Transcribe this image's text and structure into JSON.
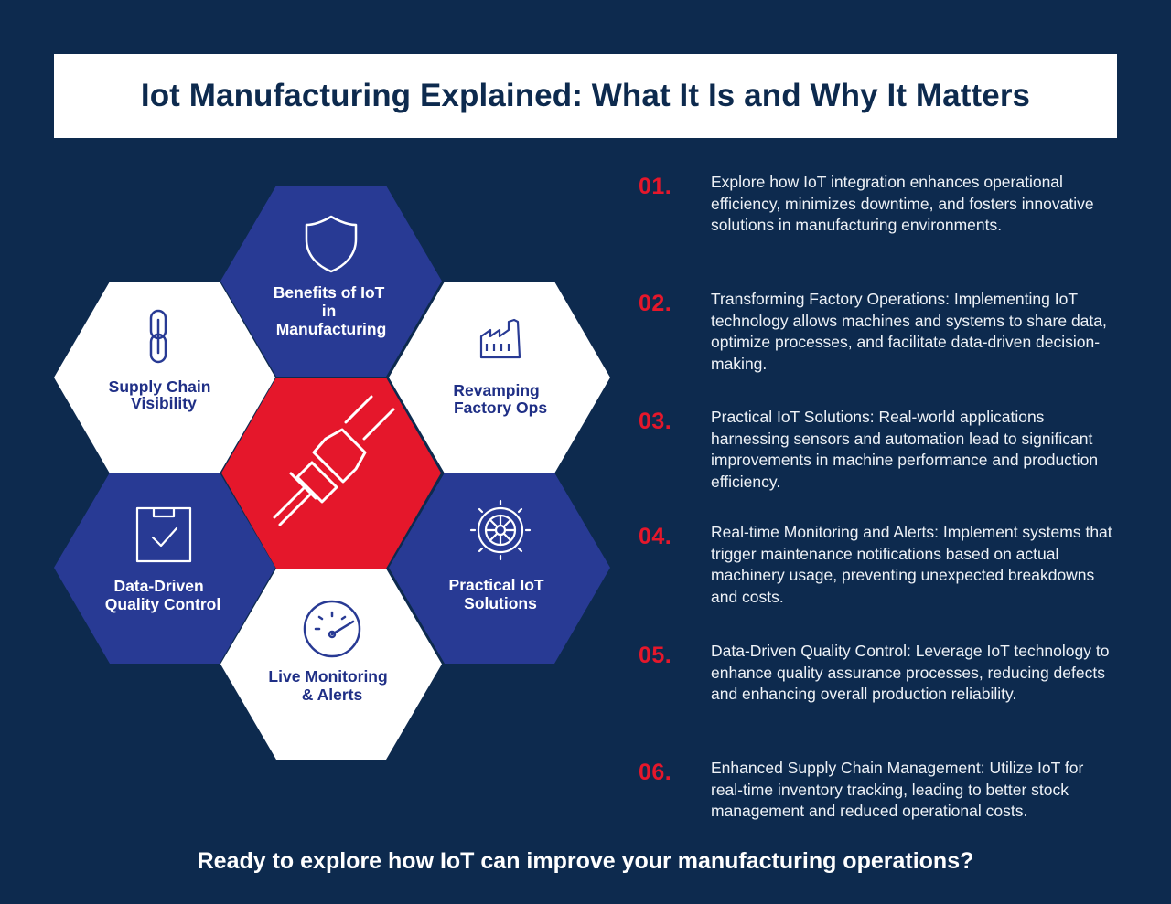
{
  "title": "Iot Manufacturing Explained: What It Is and Why It Matters",
  "hexagons": {
    "top": {
      "lines": [
        "Benefits of IoT",
        "in",
        "Manufacturing"
      ],
      "icon": "shield-icon"
    },
    "upper_left": {
      "lines": [
        "Supply Chain",
        "Visibility"
      ],
      "icon": "chain-link-icon"
    },
    "upper_right": {
      "lines": [
        "Revamping",
        "Factory Ops"
      ],
      "icon": "factory-icon"
    },
    "center": {
      "icon": "plug-connector-icon"
    },
    "lower_left": {
      "lines": [
        "Data-Driven",
        "Quality Control"
      ],
      "icon": "checkbox-icon"
    },
    "lower_right": {
      "lines": [
        "Practical IoT",
        "Solutions"
      ],
      "icon": "gear-icon"
    },
    "bottom": {
      "lines": [
        "Live Monitoring",
        "& Alerts"
      ],
      "icon": "gauge-icon"
    }
  },
  "points": [
    {
      "num": "01.",
      "text": "Explore how IoT integration enhances operational efficiency, minimizes downtime, and fosters innovative solutions in manufacturing environments."
    },
    {
      "num": "02.",
      "text": "Transforming Factory Operations: Implementing IoT technology allows machines and systems to share data, optimize processes, and facilitate data-driven decision-making."
    },
    {
      "num": "03.",
      "text": "Practical IoT Solutions: Real-world applications harnessing sensors and automation lead to significant improvements in machine performance and production efficiency."
    },
    {
      "num": "04.",
      "text": "Real-time Monitoring and Alerts: Implement systems that trigger maintenance notifications based on actual machinery usage, preventing unexpected breakdowns and costs."
    },
    {
      "num": "05.",
      "text": "Data-Driven Quality Control: Leverage IoT technology to enhance quality assurance processes, reducing defects and enhancing overall production reliability."
    },
    {
      "num": "06.",
      "text": "Enhanced Supply Chain Management: Utilize IoT for real-time inventory tracking, leading to better stock management and reduced operational costs."
    }
  ],
  "cta": "Ready to explore how IoT can improve your manufacturing operations?",
  "colors": {
    "background": "#0d2a4e",
    "hex_blue": "#283a94",
    "hex_white": "#ffffff",
    "hex_red": "#e5172b",
    "number_red": "#e5172b",
    "dark_text": "#1f2f86"
  }
}
